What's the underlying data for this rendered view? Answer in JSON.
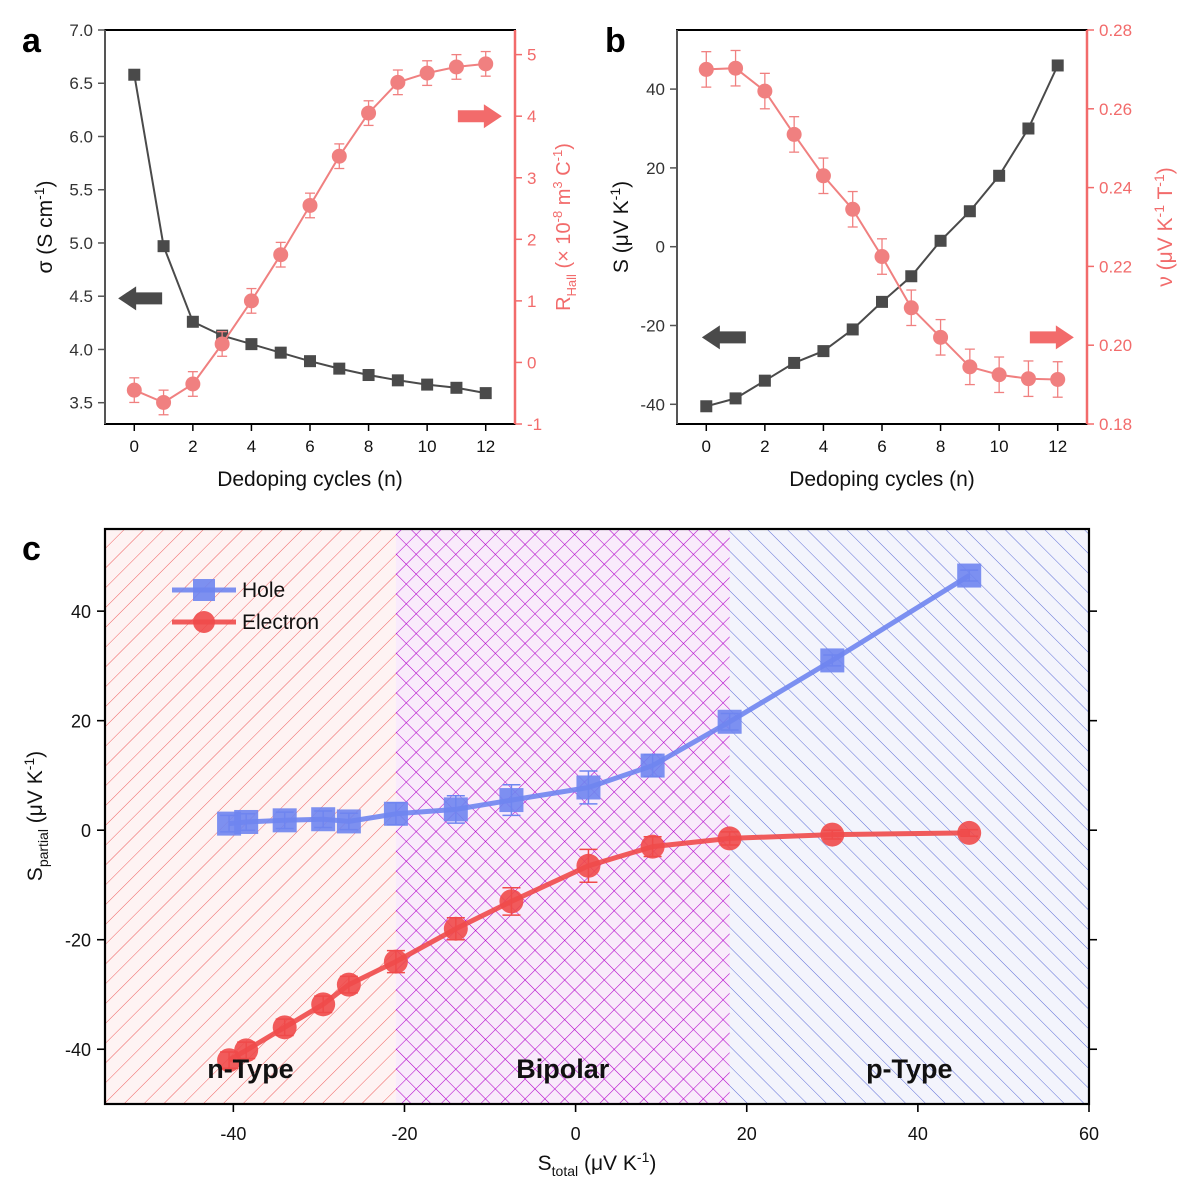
{
  "panels": [
    {
      "label": "a",
      "type": "line",
      "xlabel": "Dedoping cycles (n)",
      "xlim": [
        -1,
        13
      ],
      "xticks": [
        0,
        2,
        4,
        6,
        8,
        10,
        12
      ],
      "y_left": {
        "label": "σ (S cm",
        "label_sup": "-1",
        "label_tail": ")",
        "lim": [
          3.3,
          7.0
        ],
        "ticks": [
          3.5,
          4.0,
          4.5,
          5.0,
          5.5,
          6.0,
          6.5,
          7.0
        ],
        "tick_labels": [
          "3.5",
          "4.0",
          "4.5",
          "5.0",
          "5.5",
          "6.0",
          "6.5",
          "7.0"
        ],
        "color": "#555555"
      },
      "y_right": {
        "label": "R",
        "label_sub": "Hall",
        "label_tail": " (× 10",
        "label_sup": "-8",
        "label_tail2": " m",
        "label_sup2": "3",
        "label_tail3": " C",
        "label_sup3": "-1",
        "label_end": ")",
        "lim": [
          -1,
          5.4
        ],
        "ticks": [
          -1,
          0,
          1,
          2,
          3,
          4,
          5
        ],
        "tick_labels": [
          "-1",
          "0",
          "1",
          "2",
          "3",
          "4",
          "5"
        ],
        "color": "#f26b6b"
      },
      "series": [
        {
          "name": "σ",
          "axis": "left",
          "marker": "square",
          "color": "#4a4a4a",
          "x": [
            0,
            1,
            2,
            3,
            4,
            5,
            6,
            7,
            8,
            9,
            10,
            11,
            12
          ],
          "y": [
            6.58,
            4.97,
            4.26,
            4.13,
            4.05,
            3.97,
            3.89,
            3.82,
            3.76,
            3.71,
            3.67,
            3.64,
            3.59
          ]
        },
        {
          "name": "R_Hall",
          "axis": "right",
          "marker": "circle",
          "color": "#f08080",
          "x": [
            0,
            1,
            2,
            3,
            4,
            5,
            6,
            7,
            8,
            9,
            10,
            11,
            12
          ],
          "y": [
            -0.45,
            -0.65,
            -0.35,
            0.3,
            1.0,
            1.75,
            2.55,
            3.35,
            4.05,
            4.55,
            4.7,
            4.8,
            4.85
          ],
          "err": [
            0.2,
            0.2,
            0.2,
            0.2,
            0.2,
            0.2,
            0.2,
            0.2,
            0.2,
            0.2,
            0.2,
            0.2,
            0.2
          ]
        }
      ],
      "arrows": [
        {
          "direction": "left",
          "color": "#4a4a4a",
          "x": 0.2,
          "y": 4.48,
          "axis": "left"
        },
        {
          "direction": "right",
          "color": "#f26b6b",
          "x": 11.8,
          "y": 4.0,
          "axis": "right"
        }
      ]
    },
    {
      "label": "b",
      "type": "line",
      "xlabel": "Dedoping cycles (n)",
      "xlim": [
        -1,
        13
      ],
      "xticks": [
        0,
        2,
        4,
        6,
        8,
        10,
        12
      ],
      "y_left": {
        "label": "S (μV K",
        "label_sup": "-1",
        "label_tail": ")",
        "lim": [
          -45,
          55
        ],
        "ticks": [
          -40,
          -20,
          0,
          20,
          40
        ],
        "tick_labels": [
          "-40",
          "-20",
          "0",
          "20",
          "40"
        ],
        "color": "#555555"
      },
      "y_right": {
        "label": "ν (μV K",
        "label_sup": "-1",
        "label_tail": " T",
        "label_sup2": "-1",
        "label_end": ")",
        "lim": [
          0.18,
          0.28
        ],
        "ticks": [
          0.18,
          0.2,
          0.22,
          0.24,
          0.26,
          0.28
        ],
        "tick_labels": [
          "0.18",
          "0.20",
          "0.22",
          "0.24",
          "0.26",
          "0.28"
        ],
        "color": "#f26b6b"
      },
      "series": [
        {
          "name": "S",
          "axis": "left",
          "marker": "square",
          "color": "#4a4a4a",
          "x": [
            0,
            1,
            2,
            3,
            4,
            5,
            6,
            7,
            8,
            9,
            10,
            11,
            12
          ],
          "y": [
            -40.5,
            -38.5,
            -34,
            -29.5,
            -26.5,
            -21,
            -14,
            -7.5,
            1.5,
            9,
            18,
            30,
            46
          ]
        },
        {
          "name": "ν",
          "axis": "right",
          "marker": "circle",
          "color": "#f08080",
          "x": [
            0,
            1,
            2,
            3,
            4,
            5,
            6,
            7,
            8,
            9,
            10,
            11,
            12
          ],
          "y": [
            0.27,
            0.2703,
            0.2645,
            0.2535,
            0.243,
            0.2345,
            0.2225,
            0.2095,
            0.202,
            0.1945,
            0.1925,
            0.1915,
            0.1913
          ],
          "err": [
            0.0045,
            0.0045,
            0.0045,
            0.0045,
            0.0045,
            0.0045,
            0.0045,
            0.0045,
            0.0045,
            0.0045,
            0.0045,
            0.0045,
            0.0045
          ]
        }
      ],
      "arrows": [
        {
          "direction": "left",
          "color": "#4a4a4a",
          "x": 0.6,
          "y": -23,
          "axis": "left"
        },
        {
          "direction": "right",
          "color": "#f26b6b",
          "x": 11.8,
          "y": -23,
          "axis": "left"
        }
      ]
    }
  ],
  "chart_data": {
    "label": "c",
    "type": "line",
    "xlabel": "S",
    "xlabel_sub": "total",
    "xlabel_tail": " (μV K",
    "xlabel_sup": "-1",
    "xlabel_end": ")",
    "ylabel": "S",
    "ylabel_sub": "partial",
    "ylabel_tail": " (μV K",
    "ylabel_sup": "-1",
    "ylabel_end": ")",
    "xlim": [
      -55,
      60
    ],
    "ylim": [
      -50,
      55
    ],
    "xticks": [
      -40,
      -20,
      0,
      20,
      40,
      60
    ],
    "yticks": [
      -40,
      -20,
      0,
      20,
      40
    ],
    "legend_position": "top-left",
    "regions": [
      {
        "name": "n-Type",
        "from": -55,
        "to": -21,
        "color": "#f06060",
        "pattern": "diagonal-right"
      },
      {
        "name": "Bipolar",
        "from": -21,
        "to": 18,
        "color": "#b000c8",
        "pattern": "crosshatch"
      },
      {
        "name": "p-Type",
        "from": 18,
        "to": 60,
        "color": "#6070d8",
        "pattern": "diagonal-left"
      }
    ],
    "series": [
      {
        "name": "Hole",
        "marker": "square",
        "color": "#6f85f0",
        "x": [
          -40.5,
          -38.5,
          -34,
          -29.5,
          -26.5,
          -21,
          -14,
          -7.5,
          1.5,
          9,
          18,
          30,
          46
        ],
        "y": [
          1.2,
          1.5,
          1.8,
          2.0,
          1.6,
          3.0,
          3.8,
          5.5,
          7.8,
          11.8,
          19.8,
          31.0,
          46.5
        ],
        "err": [
          1.5,
          1.5,
          1.5,
          1.5,
          1.5,
          2.0,
          2.5,
          2.8,
          3.0,
          2.0,
          1.5,
          1.0,
          1.0
        ]
      },
      {
        "name": "Electron",
        "marker": "circle",
        "color": "#f04a4a",
        "x": [
          -40.5,
          -38.5,
          -34,
          -29.5,
          -26.5,
          -21,
          -14,
          -7.5,
          1.5,
          9,
          18,
          30,
          46
        ],
        "y": [
          -42,
          -40.2,
          -36,
          -31.8,
          -28.2,
          -24,
          -18,
          -13,
          -6.5,
          -3,
          -1.5,
          -0.8,
          -0.5
        ],
        "err": [
          1.5,
          1.5,
          1.5,
          1.5,
          1.5,
          2.0,
          2.0,
          2.5,
          3.0,
          1.8,
          1.2,
          0.8,
          0.6
        ]
      }
    ]
  }
}
